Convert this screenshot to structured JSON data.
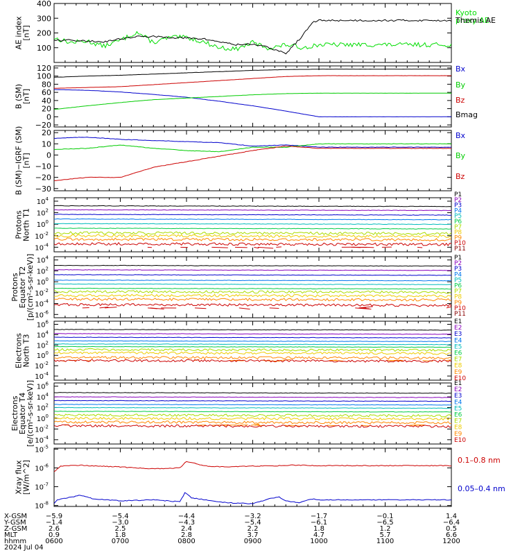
{
  "chart_data": [
    {
      "type": "line",
      "ylabel": [
        "AE index",
        "[nT]"
      ],
      "ylim": [
        0,
        400
      ],
      "yticks": [
        {
          "v": 400,
          "t": "400"
        },
        {
          "v": 300,
          "t": "300"
        },
        {
          "v": 200,
          "t": "200"
        },
        {
          "v": 100,
          "t": "100"
        }
      ],
      "series": [
        {
          "name": "Kyoto\nproxy AE",
          "color": "#00dd00",
          "x": [
            0,
            0.25,
            0.5,
            0.75,
            1,
            1.25,
            1.5,
            1.75,
            2,
            2.25,
            2.5,
            2.75,
            3,
            3.25,
            3.5,
            3.75,
            4
          ],
          "values": [
            165,
            135,
            145,
            110,
            150,
            205,
            135,
            170,
            170,
            140,
            100,
            90,
            135,
            95,
            120,
            100,
            120
          ]
        },
        {
          "name": "Themis AE",
          "color": "#000000",
          "x": [
            0,
            0.25,
            0.5,
            0.75,
            1,
            1.25,
            1.5,
            1.75,
            2,
            2.25,
            2.5,
            2.75,
            3,
            3.25,
            3.5,
            3.75,
            3.9,
            4
          ],
          "values": [
            150,
            150,
            145,
            140,
            160,
            175,
            175,
            170,
            165,
            160,
            140,
            120,
            125,
            100,
            60,
            180,
            270,
            285
          ]
        }
      ]
    },
    {
      "type": "line",
      "ylabel": [
        "B (SM)",
        "[nT]"
      ],
      "ylim": [
        -25,
        125
      ],
      "yticks": [
        {
          "v": 120,
          "t": "120"
        },
        {
          "v": 100,
          "t": "100"
        },
        {
          "v": 80,
          "t": "80"
        },
        {
          "v": 60,
          "t": "60"
        },
        {
          "v": 40,
          "t": "40"
        },
        {
          "v": 20,
          "t": "20"
        },
        {
          "v": 0,
          "t": "0"
        },
        {
          "v": -20,
          "t": "−20"
        }
      ],
      "series": [
        {
          "name": "Bx",
          "color": "#0000cc",
          "x": [
            0,
            0.5,
            1,
            1.5,
            2,
            2.5,
            3,
            3.5,
            4
          ],
          "values": [
            67,
            65,
            61,
            55,
            48,
            38,
            27,
            14,
            0
          ]
        },
        {
          "name": "By",
          "color": "#00cc00",
          "x": [
            0,
            0.5,
            1,
            1.5,
            2,
            2.5,
            3,
            3.5,
            4
          ],
          "values": [
            18,
            27,
            35,
            42,
            46,
            50,
            54,
            57,
            58
          ]
        },
        {
          "name": "Bz",
          "color": "#cc0000",
          "x": [
            0,
            0.5,
            1,
            1.5,
            2,
            2.5,
            3,
            3.5,
            4
          ],
          "values": [
            70,
            72,
            74,
            79,
            84,
            89,
            94,
            99,
            101
          ]
        },
        {
          "name": "Bmag",
          "color": "#000000",
          "x": [
            0,
            0.5,
            1,
            1.5,
            2,
            2.5,
            3,
            3.5,
            4
          ],
          "values": [
            97,
            100,
            102,
            105,
            108,
            111,
            114,
            116,
            117
          ]
        }
      ]
    },
    {
      "type": "line",
      "ylabel": [
        "B (SM)−IGRF (SM)",
        "[nT]"
      ],
      "ylim": [
        -32,
        22
      ],
      "yticks": [
        {
          "v": 20,
          "t": "20"
        },
        {
          "v": 10,
          "t": "10"
        },
        {
          "v": 0,
          "t": "0"
        },
        {
          "v": -10,
          "t": "−10"
        },
        {
          "v": -20,
          "t": "−20"
        },
        {
          "v": -30,
          "t": "−30"
        }
      ],
      "series": [
        {
          "name": "Bx",
          "color": "#0000cc",
          "x": [
            0,
            0.5,
            1,
            1.5,
            2,
            2.5,
            3,
            3.5,
            4
          ],
          "values": [
            15,
            16,
            14,
            13,
            12,
            11,
            8,
            9,
            7
          ]
        },
        {
          "name": "By",
          "color": "#00cc00",
          "x": [
            0,
            0.5,
            1,
            1.5,
            2,
            2.5,
            3,
            3.5,
            4
          ],
          "values": [
            5,
            6,
            9,
            6,
            4,
            3,
            7,
            7,
            10
          ]
        },
        {
          "name": "Bz",
          "color": "#cc0000",
          "x": [
            0,
            0.5,
            1,
            1.5,
            2,
            2.5,
            3,
            3.5,
            4
          ],
          "values": [
            -23,
            -20,
            -20,
            -11,
            -6,
            -1,
            4,
            8,
            6
          ]
        }
      ]
    },
    {
      "type": "line",
      "ylabel": [
        "Protons",
        "North T1"
      ],
      "ylog": true,
      "ylim": [
        -4.8,
        4.6
      ],
      "yticks": [
        {
          "v": 4,
          "base": "10",
          "exp": "4"
        },
        {
          "v": 2,
          "base": "10",
          "exp": "2"
        },
        {
          "v": 0,
          "base": "10",
          "exp": "0"
        },
        {
          "v": -2,
          "base": "10",
          "exp": "-2"
        },
        {
          "v": -4,
          "base": "10",
          "exp": "-4"
        }
      ],
      "series": [
        {
          "name": "P1",
          "color": "#000000",
          "log10_level": 3.2
        },
        {
          "name": "P2",
          "color": "#8800bb",
          "log10_level": 2.5
        },
        {
          "name": "P3",
          "color": "#0000cc",
          "log10_level": 1.7
        },
        {
          "name": "P4",
          "color": "#0077ee",
          "log10_level": 0.9
        },
        {
          "name": "P5",
          "color": "#00bbbb",
          "log10_level": 0.1
        },
        {
          "name": "P6",
          "color": "#00cc44",
          "log10_level": -0.7
        },
        {
          "name": "P7",
          "color": "#aadd00",
          "log10_level": -1.5
        },
        {
          "name": "P8",
          "color": "#eecc00",
          "log10_level": -2.0
        },
        {
          "name": "P9",
          "color": "#ff8800",
          "log10_level": -2.6
        },
        {
          "name": "P10",
          "color": "#cc0000",
          "log10_level": -3.4
        },
        {
          "name": "P11",
          "color": "#880000"
        }
      ]
    },
    {
      "type": "line",
      "ylabel": [
        "Protons",
        "Equator T2",
        "[p/(cm²-s-sr-keV)]"
      ],
      "ylog": true,
      "ylim": [
        -6.6,
        4.6
      ],
      "yticks": [
        {
          "v": 4,
          "base": "10",
          "exp": "4"
        },
        {
          "v": 2,
          "base": "10",
          "exp": "2"
        },
        {
          "v": 0,
          "base": "10",
          "exp": "0"
        },
        {
          "v": -2,
          "base": "10",
          "exp": "-2"
        },
        {
          "v": -4,
          "base": "10",
          "exp": "-4"
        },
        {
          "v": -6,
          "base": "10",
          "exp": "-6"
        }
      ],
      "series": [
        {
          "name": "P1",
          "color": "#000000",
          "log10_level": 3.0
        },
        {
          "name": "P2",
          "color": "#8800bb",
          "log10_level": 2.2
        },
        {
          "name": "P3",
          "color": "#0000cc",
          "log10_level": 1.3
        },
        {
          "name": "P4",
          "color": "#0077ee",
          "log10_level": 0.3
        },
        {
          "name": "P5",
          "color": "#00bbbb",
          "log10_level": -0.4
        },
        {
          "name": "P6",
          "color": "#00cc44",
          "log10_level": -1.2
        },
        {
          "name": "P7",
          "color": "#aadd00",
          "log10_level": -1.8
        },
        {
          "name": "P8",
          "color": "#eecc00",
          "log10_level": -2.5
        },
        {
          "name": "P9",
          "color": "#ff8800",
          "log10_level": -3.2
        },
        {
          "name": "P10",
          "color": "#cc0000",
          "log10_level": -4.2
        },
        {
          "name": "P11",
          "color": "#880000"
        }
      ]
    },
    {
      "type": "line",
      "ylabel": [
        "Electrons",
        "North T3"
      ],
      "ylog": true,
      "ylim": [
        -4.8,
        6.6
      ],
      "yticks": [
        {
          "v": 6,
          "base": "10",
          "exp": "6"
        },
        {
          "v": 4,
          "base": "10",
          "exp": "4"
        },
        {
          "v": 2,
          "base": "10",
          "exp": "2"
        },
        {
          "v": 0,
          "base": "10",
          "exp": "0"
        },
        {
          "v": -2,
          "base": "10",
          "exp": "-2"
        },
        {
          "v": -4,
          "base": "10",
          "exp": "-4"
        }
      ],
      "series": [
        {
          "name": "E1",
          "color": "#000000",
          "log10_level": 5.0
        },
        {
          "name": "E2",
          "color": "#8800bb",
          "log10_level": 4.2
        },
        {
          "name": "E3",
          "color": "#0000cc",
          "log10_level": 3.5
        },
        {
          "name": "E4",
          "color": "#0077ee",
          "log10_level": 2.8
        },
        {
          "name": "E5",
          "color": "#00bbbb",
          "log10_level": 2.2
        },
        {
          "name": "E6",
          "color": "#00cc44",
          "log10_level": 1.7
        },
        {
          "name": "E7",
          "color": "#aadd00",
          "log10_level": 1.1
        },
        {
          "name": "E8",
          "color": "#eecc00",
          "log10_level": 0.5
        },
        {
          "name": "E9",
          "color": "#ff8800",
          "log10_level": -0.4
        },
        {
          "name": "E10",
          "color": "#cc0000",
          "log10_level": -1.0
        }
      ]
    },
    {
      "type": "line",
      "ylabel": [
        "Electrons",
        "Equator T4",
        "[e/(cm²-s-sr-keV)]"
      ],
      "ylog": true,
      "ylim": [
        -4.8,
        6.6
      ],
      "yticks": [
        {
          "v": 6,
          "base": "10",
          "exp": "6"
        },
        {
          "v": 4,
          "base": "10",
          "exp": "4"
        },
        {
          "v": 2,
          "base": "10",
          "exp": "2"
        },
        {
          "v": 0,
          "base": "10",
          "exp": "0"
        },
        {
          "v": -2,
          "base": "10",
          "exp": "-2"
        },
        {
          "v": -4,
          "base": "10",
          "exp": "-4"
        }
      ],
      "series": [
        {
          "name": "E1",
          "color": "#000000",
          "log10_level": 4.8
        },
        {
          "name": "E2",
          "color": "#8800bb",
          "log10_level": 4.0
        },
        {
          "name": "E3",
          "color": "#0000cc",
          "log10_level": 3.3
        },
        {
          "name": "E4",
          "color": "#0077ee",
          "log10_level": 2.6
        },
        {
          "name": "E5",
          "color": "#00bbbb",
          "log10_level": 2.0
        },
        {
          "name": "E6",
          "color": "#00cc44",
          "log10_level": 1.3
        },
        {
          "name": "E7",
          "color": "#aadd00",
          "log10_level": 0.6
        },
        {
          "name": "E8",
          "color": "#eecc00",
          "log10_level": 0.0
        },
        {
          "name": "E9",
          "color": "#ff8800",
          "log10_level": -0.7
        },
        {
          "name": "E10",
          "color": "#cc0000",
          "log10_level": -1.4
        }
      ]
    },
    {
      "type": "line",
      "ylabel": [
        "Xray flux",
        "[W/m^2]"
      ],
      "ylog": true,
      "ylim": [
        -8.05,
        -4.95
      ],
      "yticks": [
        {
          "v": -5,
          "base": "10",
          "exp": "-5"
        },
        {
          "v": -6,
          "base": "10",
          "exp": "-6"
        },
        {
          "v": -7,
          "base": "10",
          "exp": "-7"
        },
        {
          "v": -8,
          "base": "10",
          "exp": "-8"
        }
      ],
      "series": [
        {
          "name": "0.1–0.8 nm",
          "color": "#cc0000",
          "x": [
            0,
            0.1,
            0.4,
            0.6,
            1,
            1.5,
            1.9,
            2,
            2.05,
            2.3,
            2.6,
            3,
            3.3,
            3.6,
            4
          ],
          "log10_values": [
            -6.2,
            -5.9,
            -5.85,
            -5.9,
            -5.95,
            -6.05,
            -6.0,
            -5.65,
            -5.7,
            -5.9,
            -5.95,
            -5.9,
            -5.9,
            -5.85,
            -5.88
          ]
        },
        {
          "name": "0.05–0.4 nm",
          "color": "#0000cc",
          "x": [
            0,
            0.05,
            0.4,
            0.6,
            1,
            1.5,
            1.9,
            1.98,
            2.08,
            2.3,
            2.6,
            3,
            3.2,
            3.3,
            3.4,
            3.5,
            3.7,
            3.9,
            4
          ],
          "log10_values": [
            -7.9,
            -7.7,
            -7.45,
            -7.65,
            -7.75,
            -7.7,
            -7.8,
            -7.3,
            -7.6,
            -7.7,
            -7.85,
            -7.9,
            -7.7,
            -7.6,
            -7.55,
            -7.75,
            -7.85,
            -7.65,
            -7.7
          ]
        }
      ]
    }
  ],
  "x_axis": {
    "row_labels": [
      "X-GSM",
      "Y-GSM",
      "Z-GSM",
      "MLT",
      "hhmm"
    ],
    "date": "2024 Jul 04",
    "columns": [
      {
        "vals": [
          "−5.9",
          "−1.4",
          "2.6",
          "0.9",
          "0600"
        ]
      },
      {
        "vals": [
          "−5.4",
          "−3.0",
          "2.5",
          "1.8",
          "0700"
        ]
      },
      {
        "vals": [
          "−4.4",
          "−4.3",
          "2.4",
          "2.8",
          "0800"
        ]
      },
      {
        "vals": [
          "−3.2",
          "−5.4",
          "2.2",
          "3.7",
          "0900"
        ]
      },
      {
        "vals": [
          "−1.7",
          "−6.1",
          "1.8",
          "4.7",
          "1000"
        ]
      },
      {
        "vals": [
          "−0.1",
          "−6.5",
          "1.2",
          "5.7",
          "1100"
        ]
      },
      {
        "vals": [
          "1.4",
          "−6.4",
          "0.5",
          "6.6",
          "1200"
        ]
      }
    ]
  }
}
